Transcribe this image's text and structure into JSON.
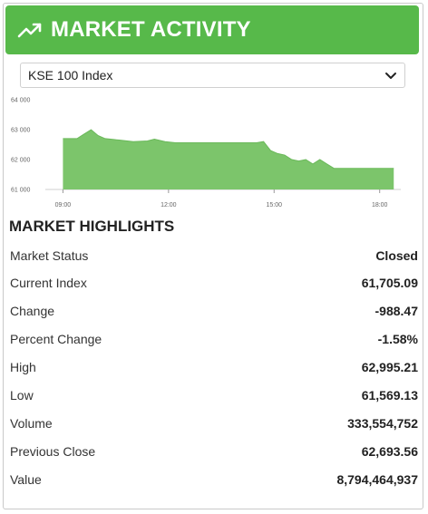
{
  "header": {
    "title": "MARKET ACTIVITY",
    "icon": "trend-up-icon"
  },
  "index_select": {
    "selected": "KSE 100 Index"
  },
  "chart_data": {
    "type": "area",
    "title": "",
    "xlabel": "",
    "ylabel": "",
    "color": "#7cc56b",
    "line_color": "#6ab85a",
    "y_ticks": [
      "61 000",
      "62 000",
      "63 000",
      "64 000"
    ],
    "x_ticks": [
      "09:00",
      "12:00",
      "15:00",
      "18:00"
    ],
    "ylim": [
      61000,
      64000
    ],
    "xlim_hours": [
      8.5,
      18.6
    ],
    "x_hours": [
      9.0,
      9.4,
      9.6,
      9.8,
      10.0,
      10.2,
      10.6,
      11.0,
      11.4,
      11.6,
      11.9,
      12.2,
      12.6,
      13.0,
      13.5,
      14.0,
      14.5,
      14.7,
      14.9,
      15.1,
      15.3,
      15.5,
      15.7,
      15.9,
      16.1,
      16.3,
      16.5,
      16.7,
      17.0,
      17.5,
      18.0,
      18.4
    ],
    "values": [
      62700,
      62700,
      62850,
      62995,
      62800,
      62700,
      62650,
      62600,
      62620,
      62680,
      62600,
      62560,
      62560,
      62560,
      62560,
      62560,
      62560,
      62600,
      62300,
      62200,
      62150,
      62000,
      61950,
      62000,
      61850,
      62000,
      61850,
      61705,
      61705,
      61705,
      61705,
      61705
    ]
  },
  "highlights": {
    "title": "MARKET HIGHLIGHTS",
    "rows": [
      {
        "label": "Market Status",
        "value": "Closed"
      },
      {
        "label": "Current Index",
        "value": "61,705.09"
      },
      {
        "label": "Change",
        "value": "-988.47"
      },
      {
        "label": "Percent Change",
        "value": "-1.58%"
      },
      {
        "label": "High",
        "value": "62,995.21"
      },
      {
        "label": "Low",
        "value": "61,569.13"
      },
      {
        "label": "Volume",
        "value": "333,554,752"
      },
      {
        "label": "Previous Close",
        "value": "62,693.56"
      },
      {
        "label": "Value",
        "value": "8,794,464,937"
      }
    ]
  }
}
